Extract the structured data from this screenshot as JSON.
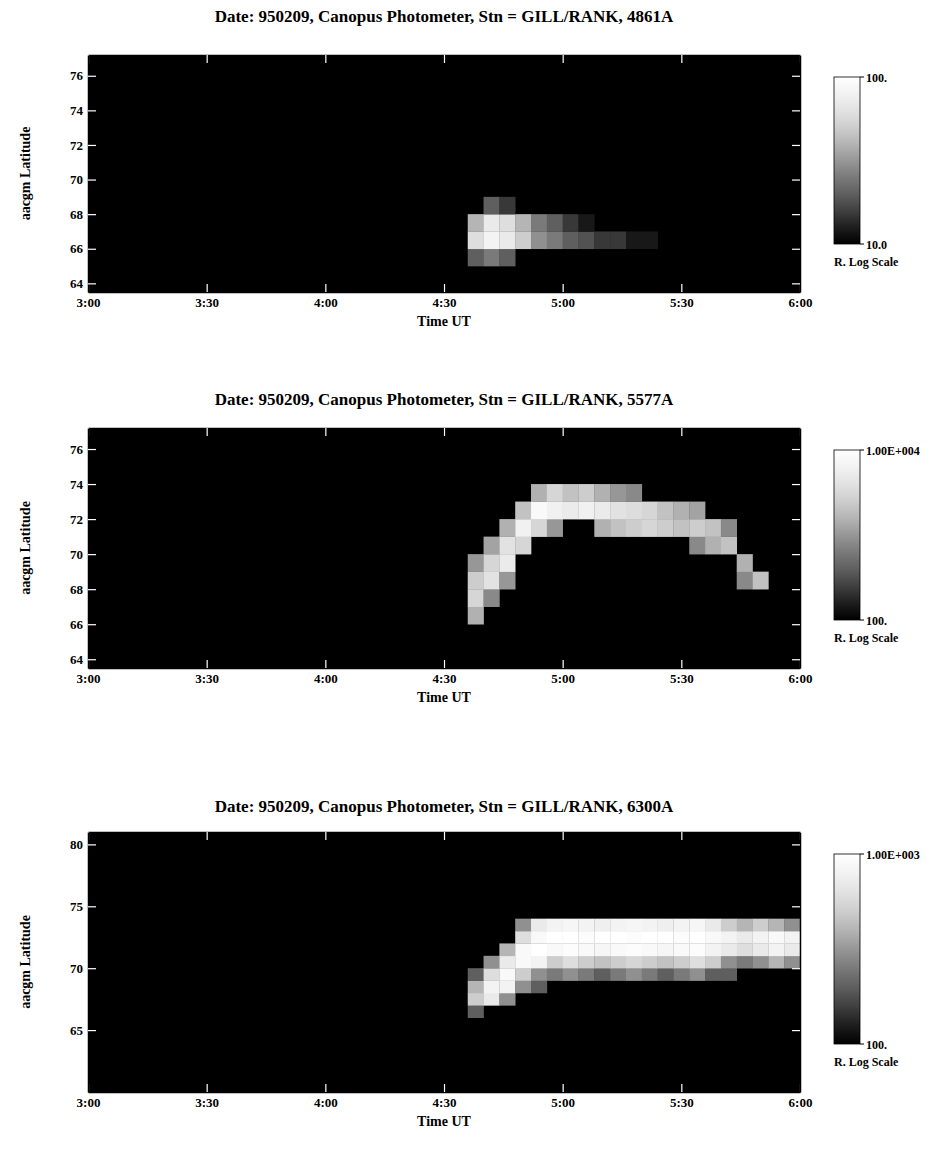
{
  "chart_data": [
    {
      "type": "heatmap",
      "title": "Date: 950209, Canopus Photometer, Stn = GILL/RANK, 4861A",
      "x_label": "Time UT",
      "y_label": "aacgm Latitude",
      "xlim": [
        180,
        360
      ],
      "xticks": [
        {
          "value": 180,
          "label": "3:00"
        },
        {
          "value": 210,
          "label": "3:30"
        },
        {
          "value": 240,
          "label": "4:00"
        },
        {
          "value": 270,
          "label": "4:30"
        },
        {
          "value": 300,
          "label": "5:00"
        },
        {
          "value": 330,
          "label": "5:30"
        },
        {
          "value": 360,
          "label": "6:00"
        }
      ],
      "ylim": [
        63.5,
        77.2
      ],
      "yticks": [
        64,
        66,
        68,
        70,
        72,
        74,
        76
      ],
      "x_bins": [
        272,
        276,
        280,
        284,
        288,
        292,
        296,
        300,
        304,
        308,
        312,
        316,
        320,
        324,
        328,
        332
      ],
      "y_bins": [
        65,
        66,
        67,
        68,
        69
      ],
      "values": [
        [
          null,
          20,
          25,
          20,
          null,
          null,
          null,
          null,
          null,
          null,
          null,
          null,
          null,
          null,
          null
        ],
        [
          null,
          60,
          80,
          70,
          50,
          30,
          25,
          20,
          18,
          15,
          15,
          12,
          12,
          null,
          null
        ],
        [
          null,
          40,
          70,
          60,
          40,
          25,
          20,
          15,
          12,
          null,
          null,
          null,
          null,
          null,
          null
        ],
        [
          null,
          null,
          20,
          15,
          null,
          null,
          null,
          null,
          null,
          null,
          null,
          null,
          null,
          null,
          null
        ]
      ],
      "colorbar": {
        "range": [
          10,
          100
        ],
        "log": true,
        "label": "R. Log Scale",
        "ticks": [
          {
            "value": 100,
            "label": "100."
          },
          {
            "value": 10,
            "label": "10.0"
          }
        ]
      }
    },
    {
      "type": "heatmap",
      "title": "Date: 950209, Canopus Photometer, Stn = GILL/RANK, 5577A",
      "x_label": "Time UT",
      "y_label": "aacgm Latitude",
      "xlim": [
        180,
        360
      ],
      "xticks": [
        {
          "value": 180,
          "label": "3:00"
        },
        {
          "value": 210,
          "label": "3:30"
        },
        {
          "value": 240,
          "label": "4:00"
        },
        {
          "value": 270,
          "label": "4:30"
        },
        {
          "value": 300,
          "label": "5:00"
        },
        {
          "value": 330,
          "label": "5:30"
        },
        {
          "value": 360,
          "label": "6:00"
        }
      ],
      "ylim": [
        63.5,
        77.2
      ],
      "yticks": [
        64,
        66,
        68,
        70,
        72,
        74,
        76
      ],
      "x_bins": [
        272,
        276,
        280,
        284,
        288,
        292,
        296,
        300,
        304,
        308,
        312,
        316,
        320,
        324,
        328,
        332,
        336,
        340,
        344,
        348,
        352
      ],
      "y_bins": [
        66,
        67,
        68,
        69,
        70,
        71,
        72,
        73,
        74
      ],
      "values": [
        [
          null,
          1500,
          null,
          null,
          null,
          null,
          null,
          null,
          null,
          null,
          null,
          null,
          null,
          null,
          null,
          null,
          null,
          null,
          null,
          null
        ],
        [
          null,
          3000,
          800,
          null,
          null,
          null,
          null,
          null,
          null,
          null,
          null,
          null,
          null,
          null,
          null,
          null,
          null,
          null,
          null,
          null
        ],
        [
          null,
          2500,
          4000,
          1000,
          null,
          null,
          null,
          null,
          null,
          null,
          null,
          null,
          null,
          null,
          null,
          null,
          null,
          null,
          800,
          2000
        ],
        [
          null,
          1000,
          3000,
          5000,
          null,
          null,
          null,
          null,
          null,
          null,
          null,
          null,
          null,
          null,
          null,
          null,
          null,
          null,
          1500,
          null
        ],
        [
          null,
          null,
          1200,
          4000,
          3000,
          null,
          null,
          null,
          null,
          null,
          null,
          null,
          null,
          null,
          null,
          800,
          1500,
          2000,
          null,
          null
        ],
        [
          null,
          null,
          null,
          1500,
          6000,
          3000,
          1000,
          null,
          null,
          1500,
          2000,
          2500,
          3000,
          2500,
          2000,
          2500,
          2000,
          800,
          null,
          null
        ],
        [
          null,
          null,
          null,
          null,
          2000,
          8000,
          6000,
          5000,
          6000,
          5000,
          4000,
          3500,
          3000,
          2000,
          1500,
          1200,
          null,
          null,
          null,
          null
        ],
        [
          null,
          null,
          null,
          null,
          null,
          1500,
          3000,
          2000,
          2500,
          1500,
          1000,
          800,
          null,
          null,
          null,
          null,
          null,
          null,
          null,
          null
        ]
      ],
      "colorbar": {
        "range": [
          100,
          10000
        ],
        "log": true,
        "label": "R. Log Scale",
        "ticks": [
          {
            "value": 10000,
            "label": "1.00E+004"
          },
          {
            "value": 100,
            "label": "100."
          }
        ]
      }
    },
    {
      "type": "heatmap",
      "title": "Date: 950209, Canopus Photometer, Stn = GILL/RANK, 6300A",
      "x_label": "Time UT",
      "y_label": "aacgm Latitude",
      "xlim": [
        180,
        360
      ],
      "xticks": [
        {
          "value": 180,
          "label": "3:00"
        },
        {
          "value": 210,
          "label": "3:30"
        },
        {
          "value": 240,
          "label": "4:00"
        },
        {
          "value": 270,
          "label": "4:30"
        },
        {
          "value": 300,
          "label": "5:00"
        },
        {
          "value": 330,
          "label": "5:30"
        },
        {
          "value": 360,
          "label": "6:00"
        }
      ],
      "ylim": [
        60,
        81
      ],
      "yticks": [
        65,
        70,
        75,
        80
      ],
      "x_bins": [
        272,
        276,
        280,
        284,
        288,
        292,
        296,
        300,
        304,
        308,
        312,
        316,
        320,
        324,
        328,
        332,
        336,
        340,
        344,
        348,
        352,
        356,
        360
      ],
      "y_bins": [
        66,
        67,
        68,
        69,
        70,
        71,
        72,
        73,
        74
      ],
      "values": [
        [
          null,
          200,
          null,
          null,
          null,
          null,
          null,
          null,
          null,
          null,
          null,
          null,
          null,
          null,
          null,
          null,
          null,
          null,
          null,
          null,
          null,
          null
        ],
        [
          null,
          500,
          700,
          300,
          null,
          null,
          null,
          null,
          null,
          null,
          null,
          null,
          null,
          null,
          null,
          null,
          null,
          null,
          null,
          null,
          null,
          null
        ],
        [
          null,
          400,
          800,
          800,
          300,
          200,
          null,
          null,
          null,
          null,
          null,
          null,
          null,
          null,
          null,
          null,
          null,
          null,
          null,
          null,
          null,
          null
        ],
        [
          null,
          200,
          600,
          900,
          500,
          300,
          250,
          300,
          250,
          200,
          250,
          300,
          250,
          200,
          250,
          300,
          200,
          200,
          null,
          null,
          null,
          null
        ],
        [
          null,
          null,
          300,
          700,
          900,
          800,
          500,
          600,
          500,
          450,
          500,
          550,
          500,
          450,
          500,
          600,
          500,
          300,
          250,
          300,
          400,
          300
        ],
        [
          null,
          null,
          null,
          400,
          900,
          1000,
          900,
          950,
          900,
          850,
          900,
          950,
          900,
          850,
          900,
          950,
          800,
          700,
          600,
          700,
          800,
          700
        ],
        [
          null,
          null,
          null,
          null,
          600,
          900,
          1000,
          1000,
          950,
          1000,
          1000,
          950,
          1000,
          1000,
          950,
          1000,
          900,
          800,
          700,
          800,
          900,
          800
        ],
        [
          null,
          null,
          null,
          null,
          300,
          700,
          800,
          850,
          800,
          750,
          800,
          850,
          800,
          750,
          800,
          850,
          700,
          500,
          400,
          500,
          400,
          300
        ]
      ],
      "colorbar": {
        "range": [
          100,
          1000
        ],
        "log": true,
        "label": "R. Log Scale",
        "ticks": [
          {
            "value": 1000,
            "label": "1.00E+003"
          },
          {
            "value": 100,
            "label": "100."
          }
        ]
      }
    }
  ]
}
